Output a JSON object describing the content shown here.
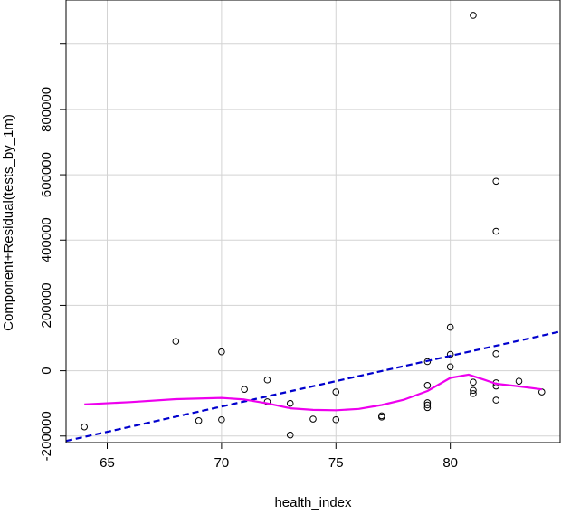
{
  "chart_data": {
    "type": "scatter",
    "title": "",
    "xlabel": "health_index",
    "ylabel": "Component+Residual(tests_by_1m)",
    "xlim": [
      63.2,
      84.8
    ],
    "ylim": [
      -220000,
      1135000
    ],
    "x_ticks": [
      65,
      70,
      75,
      80
    ],
    "y_ticks": [
      -200000,
      0,
      200000,
      400000,
      600000,
      800000,
      1000000
    ],
    "x_tick_labels": [
      "65",
      "70",
      "75",
      "80"
    ],
    "y_tick_labels": [
      "-200000",
      "0",
      "200000",
      "400000",
      "600000",
      "800000",
      ""
    ],
    "grid": true,
    "points": [
      {
        "x": 64,
        "y": -172000
      },
      {
        "x": 68,
        "y": 90000
      },
      {
        "x": 69,
        "y": -153000
      },
      {
        "x": 70,
        "y": 58000
      },
      {
        "x": 70,
        "y": -150000
      },
      {
        "x": 71,
        "y": -57000
      },
      {
        "x": 72,
        "y": -28000
      },
      {
        "x": 72,
        "y": -95000
      },
      {
        "x": 73,
        "y": -100000
      },
      {
        "x": 73,
        "y": -197000
      },
      {
        "x": 74,
        "y": -148000
      },
      {
        "x": 75,
        "y": -65000
      },
      {
        "x": 75,
        "y": -150000
      },
      {
        "x": 77,
        "y": -138000
      },
      {
        "x": 77,
        "y": -142000
      },
      {
        "x": 79,
        "y": 28000
      },
      {
        "x": 79,
        "y": -45000
      },
      {
        "x": 79,
        "y": -98000
      },
      {
        "x": 79,
        "y": -105000
      },
      {
        "x": 79,
        "y": -113000
      },
      {
        "x": 80,
        "y": 133000
      },
      {
        "x": 80,
        "y": 50000
      },
      {
        "x": 80,
        "y": 12000
      },
      {
        "x": 81,
        "y": 1088000
      },
      {
        "x": 81,
        "y": -35000
      },
      {
        "x": 81,
        "y": -60000
      },
      {
        "x": 81,
        "y": -70000
      },
      {
        "x": 82,
        "y": 580000
      },
      {
        "x": 82,
        "y": 427000
      },
      {
        "x": 82,
        "y": 52000
      },
      {
        "x": 82,
        "y": -37000
      },
      {
        "x": 82,
        "y": -47000
      },
      {
        "x": 82,
        "y": -90000
      },
      {
        "x": 83,
        "y": -32000
      },
      {
        "x": 84,
        "y": -65000
      }
    ],
    "series": [
      {
        "kind": "linear-fit",
        "color": "#0000cd",
        "style": "dashed",
        "x": [
          63.2,
          84.8
        ],
        "y": [
          -215000,
          120000
        ]
      },
      {
        "kind": "smooth",
        "color": "#ee00ee",
        "style": "solid",
        "x": [
          64,
          66,
          68,
          70,
          71,
          72,
          73,
          74,
          75,
          76,
          77,
          78,
          79,
          80,
          80.8,
          81.5,
          82,
          83,
          84
        ],
        "y": [
          -103000,
          -96000,
          -87000,
          -83000,
          -88000,
          -100000,
          -115000,
          -120000,
          -121000,
          -117000,
          -105000,
          -88000,
          -62000,
          -22000,
          -12000,
          -28000,
          -40000,
          -48000,
          -57000
        ]
      }
    ]
  }
}
